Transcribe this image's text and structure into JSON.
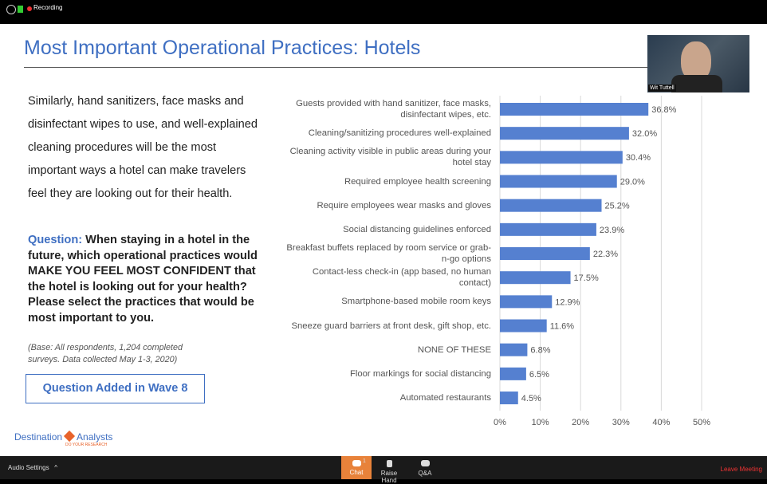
{
  "top_bar": {
    "status": "Recording"
  },
  "slide": {
    "title": "Most Important Operational Practices: Hotels",
    "body": "Similarly, hand sanitizers, face masks and disinfectant wipes to use, and well-explained cleaning procedures will be the most important ways a hotel can make travelers feel they are looking out for their health.",
    "question_label": "Question:",
    "question": "When staying in a hotel in the future, which operational practices would MAKE YOU FEEL MOST CONFIDENT that the hotel is looking out for your health?  Please select the practices  that would be most important to you.",
    "base_note": "(Base: All respondents, 1,204 completed surveys. Data collected May 1-3, 2020)",
    "button": "Question Added in Wave 8",
    "logo": {
      "name1": "Destination",
      "name2": "Analysts",
      "tagline": "DO YOUR RESEARCH"
    }
  },
  "chart_data": {
    "type": "bar",
    "orientation": "horizontal",
    "color": "#5580d0",
    "grid": true,
    "categories": [
      "Guests provided with hand sanitizer, face masks, disinfectant wipes, etc.",
      "Cleaning/sanitizing procedures well-explained",
      "Cleaning activity visible in public areas during your hotel stay",
      "Required employee health screening",
      "Require employees wear masks and gloves",
      "Social distancing guidelines enforced",
      "Breakfast buffets replaced by room service or grab-n-go options",
      "Contact-less check-in (app based, no human contact)",
      "Smartphone-based mobile room keys",
      "Sneeze guard barriers at front desk, gift shop, etc.",
      "NONE OF THESE",
      "Floor markings for social distancing",
      "Automated restaurants"
    ],
    "values": [
      36.8,
      32.0,
      30.4,
      29.0,
      25.2,
      23.9,
      22.3,
      17.5,
      12.9,
      11.6,
      6.8,
      6.5,
      4.5
    ],
    "value_labels": [
      "36.8%",
      "32.0%",
      "30.4%",
      "29.0%",
      "25.2%",
      "23.9%",
      "22.3%",
      "17.5%",
      "12.9%",
      "11.6%",
      "6.8%",
      "6.5%",
      "4.5%"
    ],
    "xlim": [
      0,
      50
    ],
    "xticks": [
      {
        "value": 0,
        "label": "0%"
      },
      {
        "value": 10,
        "label": "10%"
      },
      {
        "value": 20,
        "label": "20%"
      },
      {
        "value": 30,
        "label": "30%"
      },
      {
        "value": 40,
        "label": "40%"
      },
      {
        "value": 50,
        "label": "50%"
      }
    ]
  },
  "video": {
    "name": "Wit Tuttell"
  },
  "toolbar": {
    "audio": "Audio Settings",
    "chat": "Chat",
    "chat_badge": "1",
    "raise_hand": "Raise Hand",
    "qa": "Q&A",
    "leave": "Leave Meeting"
  }
}
